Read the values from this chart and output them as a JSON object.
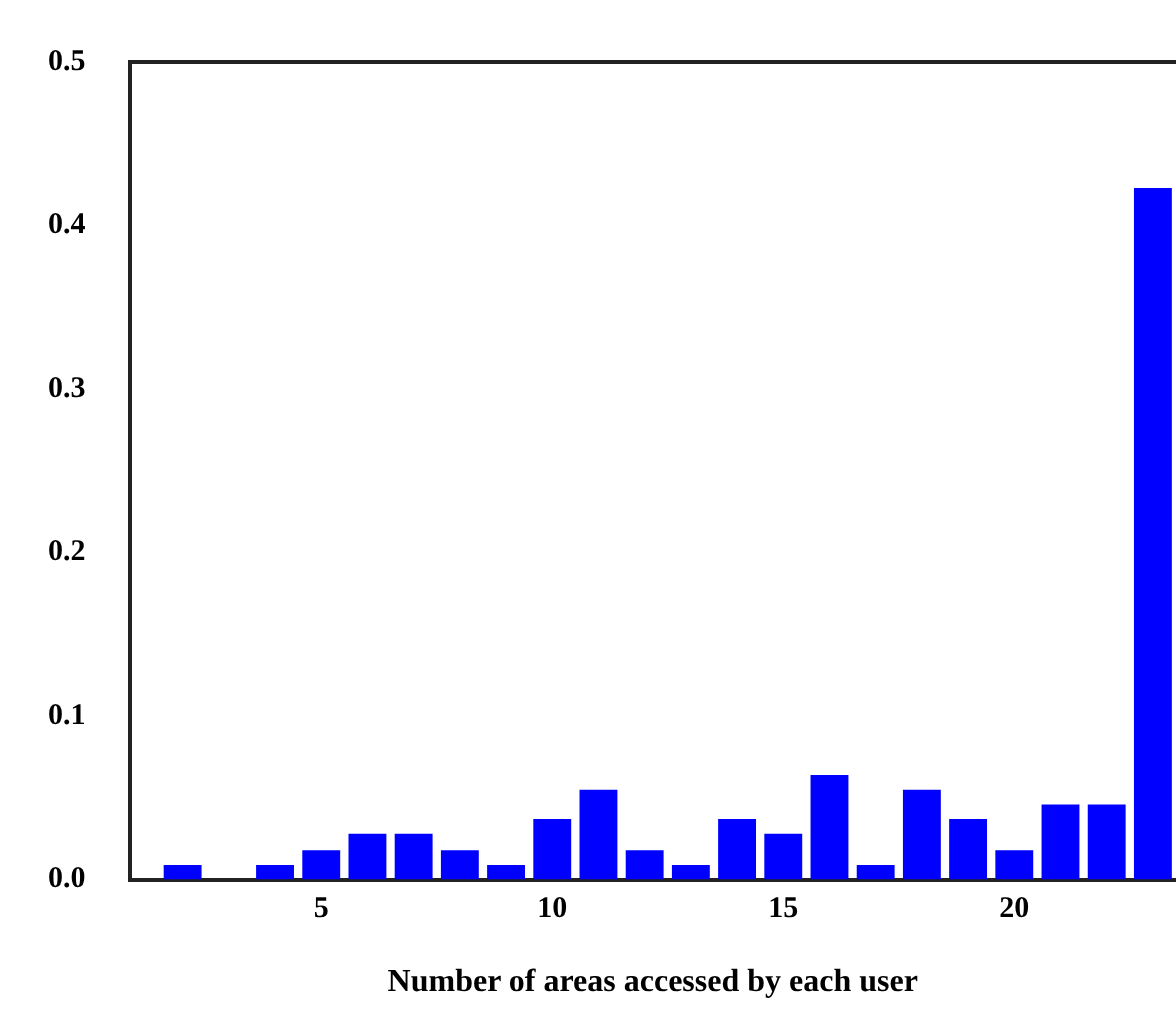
{
  "chart_data": {
    "type": "bar",
    "xlabel": "Number of areas accessed by each user",
    "x": [
      2,
      3,
      4,
      5,
      6,
      7,
      8,
      9,
      10,
      11,
      12,
      13,
      14,
      15,
      16,
      17,
      18,
      19,
      20,
      21,
      22,
      23
    ],
    "values": [
      0.009,
      0,
      0.009,
      0.018,
      0.028,
      0.028,
      0.018,
      0.009,
      0.037,
      0.055,
      0.018,
      0.009,
      0.037,
      0.028,
      0.064,
      0.009,
      0.055,
      0.037,
      0.018,
      0.046,
      0.046,
      0.423
    ],
    "color": "#0000ff",
    "xlim": [
      0.85,
      23.5
    ],
    "xticks": [
      5,
      10,
      15,
      20
    ],
    "ylim": [
      0,
      0.5
    ],
    "yticks": [
      {
        "value": 0,
        "label": "0.0"
      },
      0.1,
      0.2,
      0.3,
      0.4,
      0.5
    ],
    "grid": false,
    "legend": false
  }
}
